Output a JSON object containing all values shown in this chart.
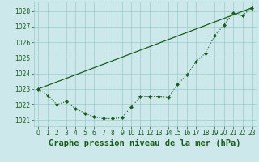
{
  "title": "Graphe pression niveau de la mer (hPa)",
  "bg_color": "#cce8ea",
  "grid_color": "#99cccc",
  "line_color": "#1a5c1a",
  "xlim": [
    -0.5,
    23.5
  ],
  "ylim": [
    1020.6,
    1028.6
  ],
  "yticks": [
    1021,
    1022,
    1023,
    1024,
    1025,
    1026,
    1027,
    1028
  ],
  "xticks": [
    0,
    1,
    2,
    3,
    4,
    5,
    6,
    7,
    8,
    9,
    10,
    11,
    12,
    13,
    14,
    15,
    16,
    17,
    18,
    19,
    20,
    21,
    22,
    23
  ],
  "curve1_x": [
    0,
    1,
    2,
    3,
    4,
    5,
    6,
    7,
    8,
    9,
    10,
    11,
    12,
    13,
    14,
    15,
    16,
    17,
    18,
    19,
    20,
    21,
    22,
    23
  ],
  "curve1_y": [
    1023.0,
    1022.6,
    1022.0,
    1022.2,
    1021.75,
    1021.45,
    1021.2,
    1021.1,
    1021.1,
    1021.15,
    1021.85,
    1022.5,
    1022.5,
    1022.5,
    1022.45,
    1023.3,
    1023.9,
    1024.75,
    1025.3,
    1026.4,
    1027.1,
    1027.85,
    1027.7,
    1028.2
  ],
  "trend_x": [
    0,
    23
  ],
  "trend_y": [
    1023.0,
    1028.2
  ],
  "title_fontsize": 7.5,
  "tick_fontsize": 5.5
}
